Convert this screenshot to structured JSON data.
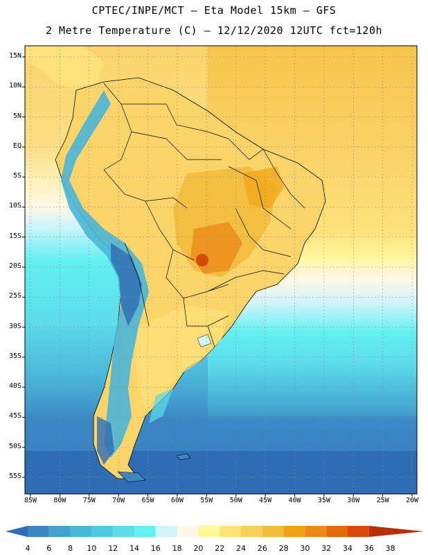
{
  "header": {
    "line1": "CPTEC/INPE/MCT —  Eta Model 15km — GFS",
    "line2": "2 Metre Temperature (C) — 12/12/2020 12UTC fct=120h"
  },
  "map": {
    "lat_labels": [
      "15N",
      "10N",
      "5N",
      "EQ",
      "5S",
      "10S",
      "15S",
      "20S",
      "25S",
      "30S",
      "35S",
      "40S",
      "45S",
      "50S",
      "55S"
    ],
    "lon_labels": [
      "85W",
      "80W",
      "75W",
      "70W",
      "65W",
      "60W",
      "55W",
      "50W",
      "45W",
      "40W",
      "35W",
      "30W",
      "25W",
      "20W"
    ]
  },
  "legend": {
    "labels": [
      "4",
      "6",
      "8",
      "10",
      "12",
      "14",
      "16",
      "18",
      "20",
      "22",
      "24",
      "26",
      "28",
      "30",
      "32",
      "34",
      "36",
      "38"
    ],
    "colors": [
      "#2e6db4",
      "#3a86c4",
      "#44a0cf",
      "#4ab6d8",
      "#52c9e2",
      "#5ddcea",
      "#62f0f2",
      "#d2f4fb",
      "#fff8e6",
      "#fff79a",
      "#fde27c",
      "#f7cf5a",
      "#f2bb3a",
      "#f0a412",
      "#ec8a18",
      "#e46a0a",
      "#d64a06",
      "#b82e05"
    ]
  }
}
